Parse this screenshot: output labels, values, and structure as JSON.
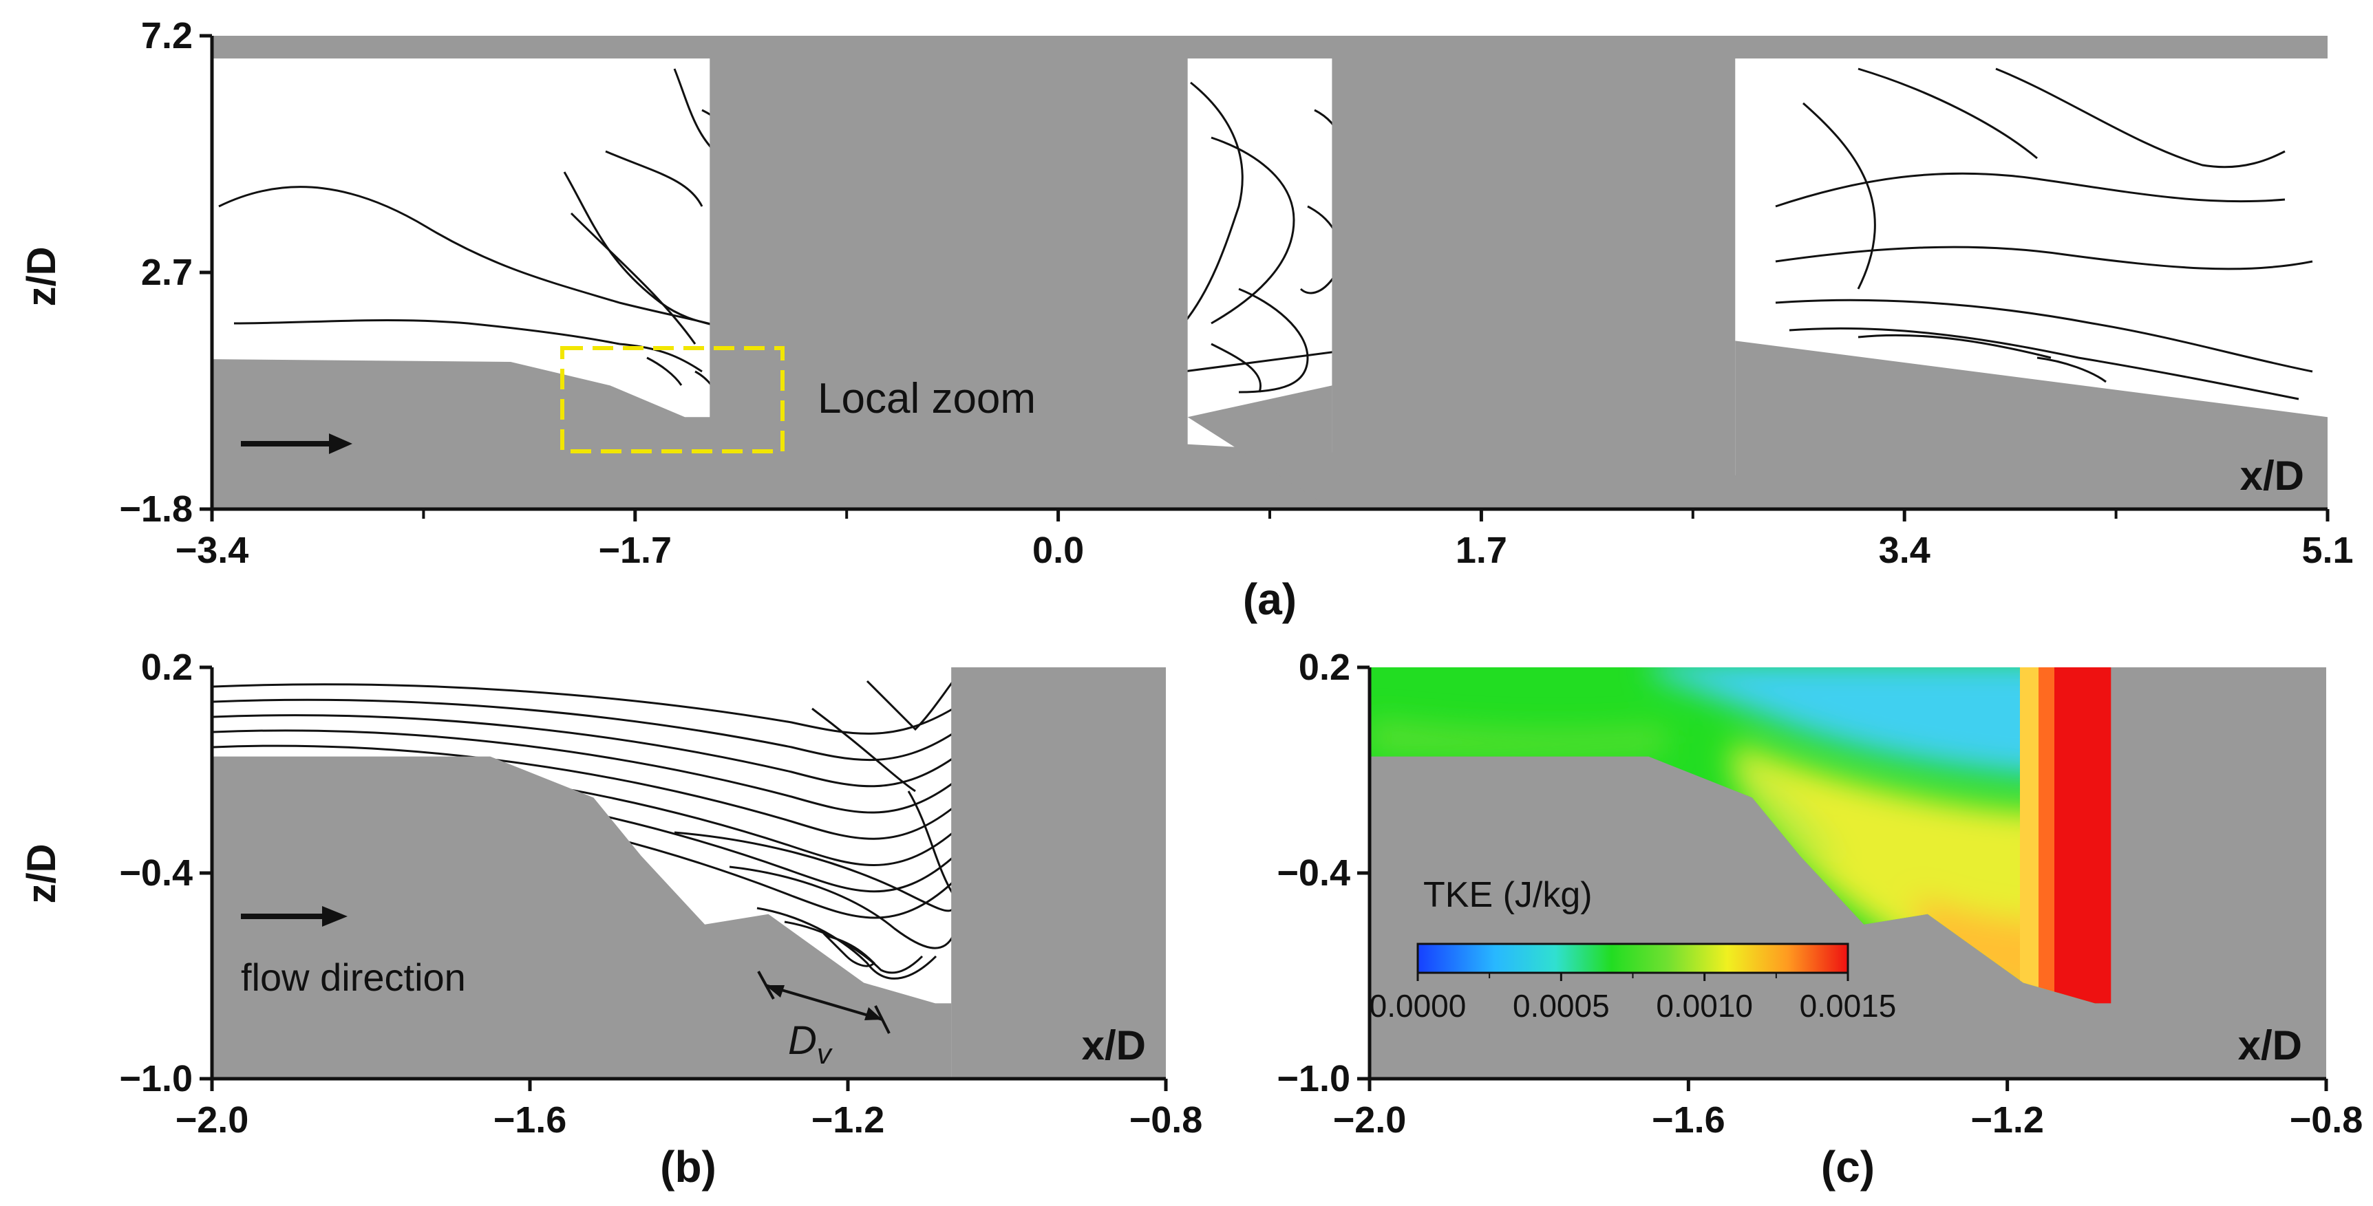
{
  "colors": {
    "solid": "#999999",
    "contour": "#111111",
    "zoom_box": "#f2e600",
    "tke_low": "#3fd0f0",
    "tke_mid": "#22dd22",
    "tke_high": "#ee2222"
  },
  "chart_data": [
    {
      "id": "a",
      "type": "contour",
      "panel_label": "(a)",
      "xlabel": "x/D",
      "ylabel": "z/D",
      "xlim": [
        -3.4,
        5.1
      ],
      "ylim": [
        -1.8,
        7.2
      ],
      "xticks": [
        "−3.4",
        "−1.7",
        "0.0",
        "1.7",
        "3.4",
        "5.1"
      ],
      "yticks": [
        "7.2",
        "2.7",
        "−1.8"
      ],
      "annotation": "Local zoom",
      "bed_profile": [
        [
          -3.4,
          1.05
        ],
        [
          -2.2,
          1.0
        ],
        [
          -1.8,
          0.55
        ],
        [
          -1.5,
          -0.05
        ],
        [
          -1.4,
          -0.05
        ]
      ],
      "piers": [
        [
          -1.4,
          0.4
        ],
        [
          1.9,
          2.7
        ]
      ]
    },
    {
      "id": "b",
      "type": "contour",
      "panel_label": "(b)",
      "xlabel": "x/D",
      "ylabel": "z/D",
      "xlim": [
        -2.0,
        -0.8
      ],
      "ylim": [
        -1.0,
        0.2
      ],
      "xticks": [
        "−2.0",
        "−1.6",
        "−1.2",
        "−0.8"
      ],
      "yticks": [
        "0.2",
        "−0.4",
        "−1.0"
      ],
      "annotation_flow": "flow direction",
      "annotation_dv": "D",
      "annotation_dv_sub": "v",
      "bed_profile": [
        [
          -2.0,
          -0.06
        ],
        [
          -1.65,
          -0.06
        ],
        [
          -1.52,
          -0.18
        ],
        [
          -1.46,
          -0.35
        ],
        [
          -1.38,
          -0.55
        ],
        [
          -1.3,
          -0.52
        ],
        [
          -1.18,
          -0.72
        ],
        [
          -1.09,
          -0.78
        ],
        [
          -1.07,
          -0.78
        ]
      ],
      "pier_x": -1.07
    },
    {
      "id": "c",
      "type": "heatmap",
      "panel_label": "(c)",
      "xlabel": "x/D",
      "ylabel": "",
      "xlim": [
        -2.0,
        -0.8
      ],
      "ylim": [
        -1.0,
        0.2
      ],
      "xticks": [
        "−2.0",
        "−1.6",
        "−1.2",
        "−0.8"
      ],
      "yticks": [
        "0.2",
        "−0.4",
        "−1.0"
      ],
      "colorbar_title": "TKE (J/kg)",
      "colorbar_ticks": [
        "0.0000",
        "0.0005",
        "0.0010",
        "0.0015"
      ],
      "colorbar_range": [
        0.0,
        0.0015
      ],
      "bed_profile": [
        [
          -2.0,
          -0.06
        ],
        [
          -1.65,
          -0.06
        ],
        [
          -1.52,
          -0.18
        ],
        [
          -1.46,
          -0.35
        ],
        [
          -1.38,
          -0.55
        ],
        [
          -1.3,
          -0.52
        ],
        [
          -1.18,
          -0.72
        ],
        [
          -1.09,
          -0.78
        ],
        [
          -1.07,
          -0.78
        ]
      ],
      "pier_x": -1.07
    }
  ]
}
